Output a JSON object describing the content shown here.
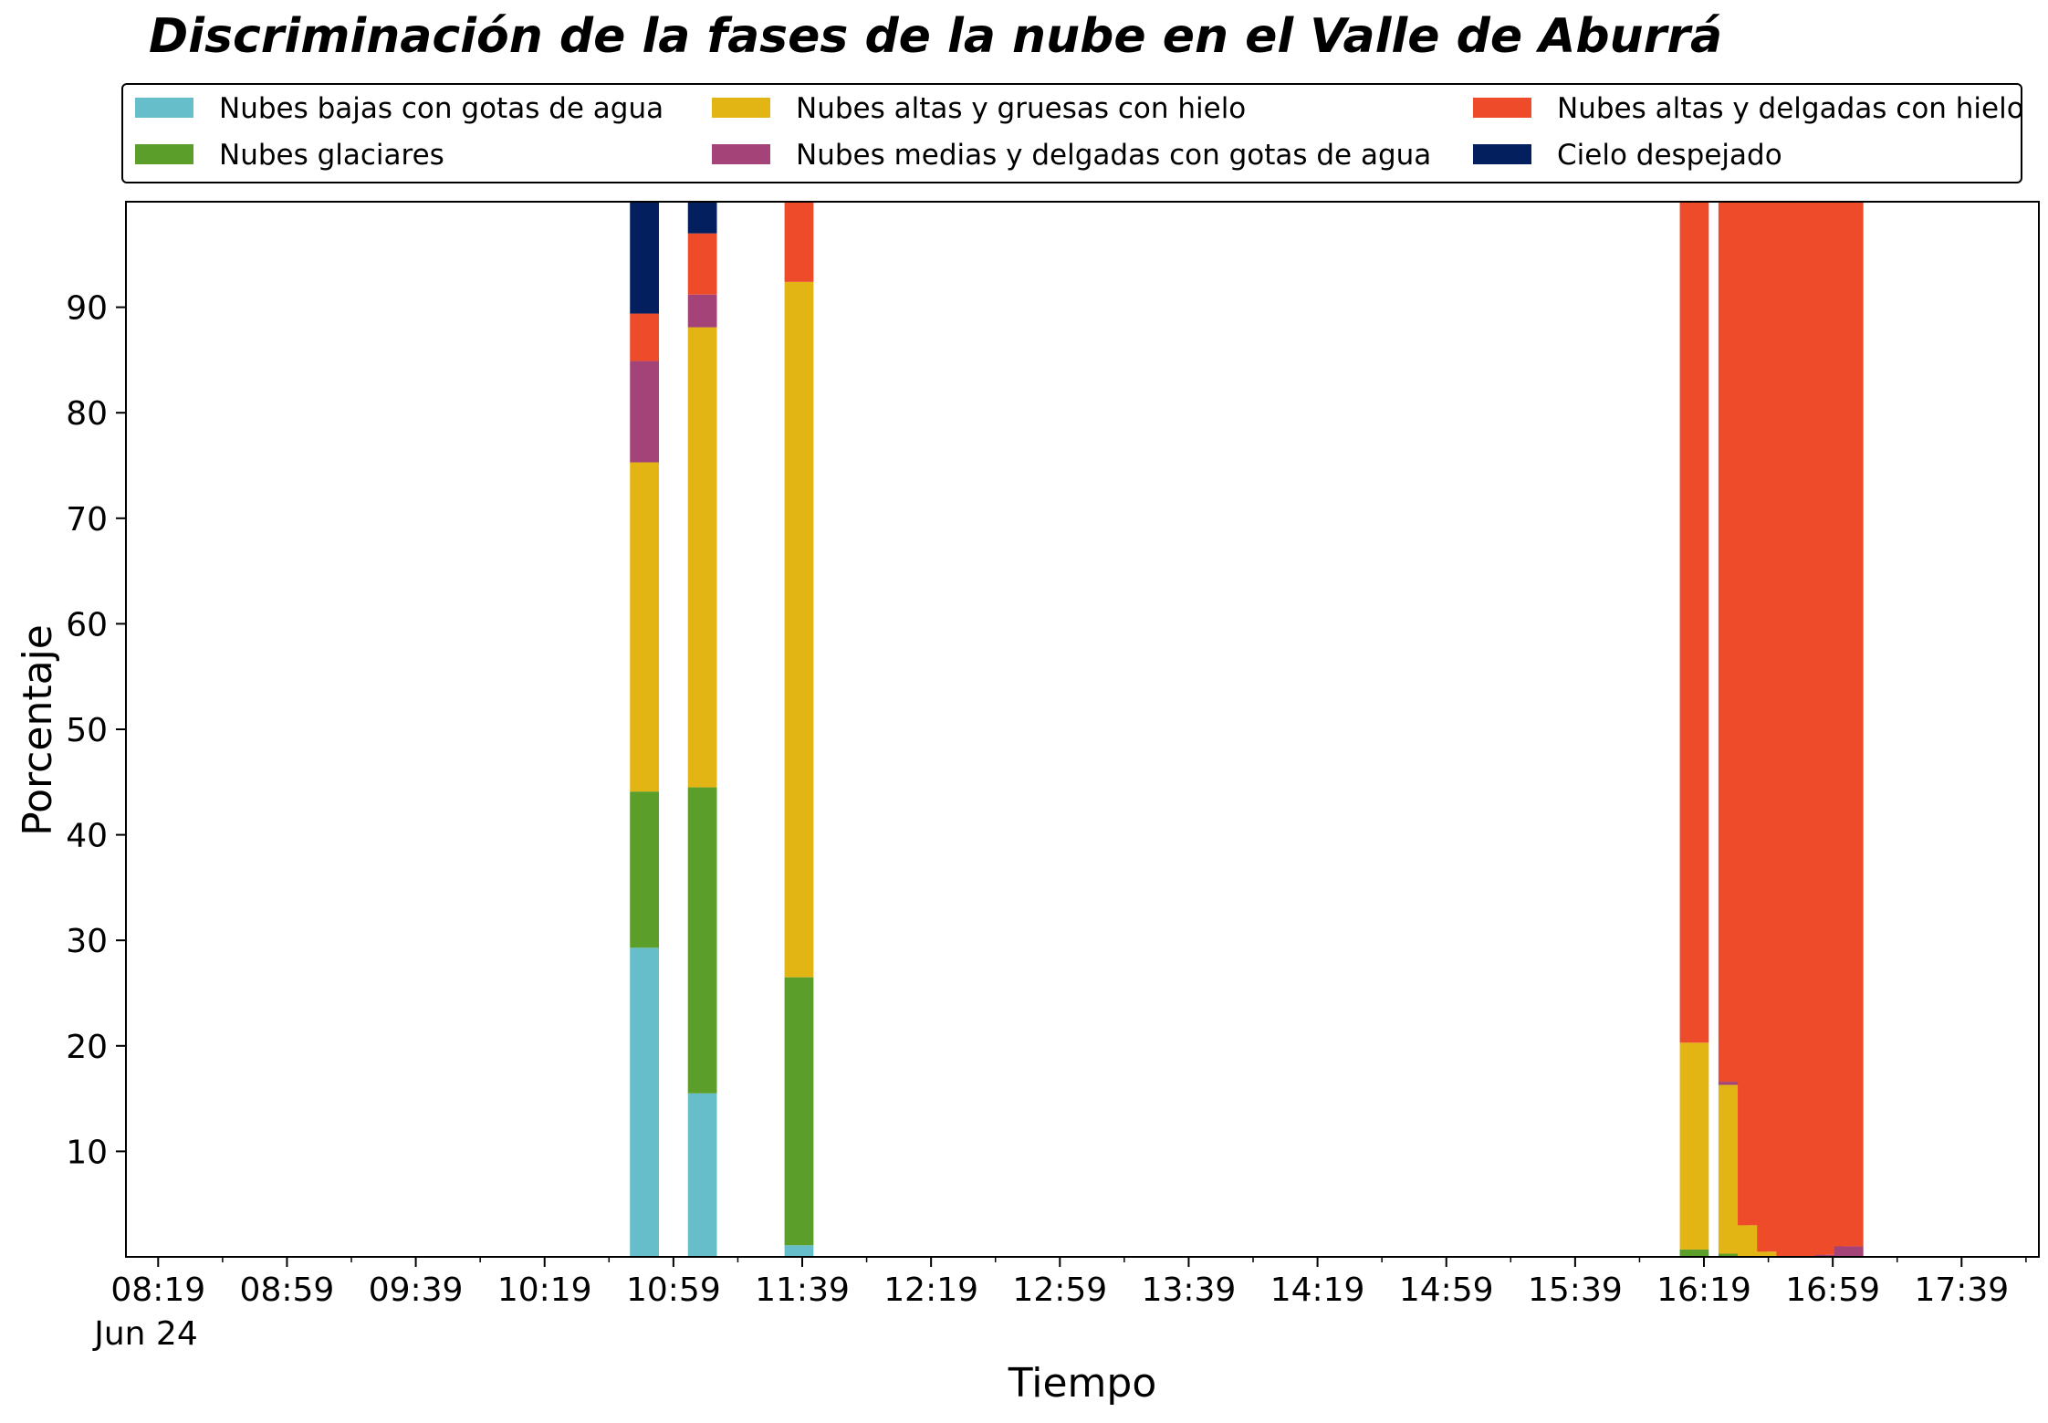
{
  "chart_data": {
    "type": "bar",
    "stacked": true,
    "title": "Discriminación de la fases de la nube en el Valle de Aburrá",
    "xlabel": "Tiempo",
    "ylabel": "Porcentaje",
    "ylim": [
      0,
      100
    ],
    "yticks": [
      10,
      20,
      30,
      40,
      50,
      60,
      70,
      80,
      90
    ],
    "xlim": [
      "08:09",
      "18:03"
    ],
    "xticks": [
      "08:19",
      "08:59",
      "09:39",
      "10:19",
      "10:59",
      "11:39",
      "12:19",
      "12:59",
      "13:39",
      "14:19",
      "14:59",
      "15:39",
      "16:19",
      "16:59",
      "17:39"
    ],
    "x_date_label": "Jun 24",
    "legend_position": "top (above plot, 3 columns)",
    "grid": false,
    "bar_width_minutes": 9,
    "categories": [
      "10:50",
      "11:08",
      "11:38",
      "16:16",
      "16:28",
      "16:34",
      "16:40",
      "16:46",
      "16:52",
      "16:58",
      "17:04"
    ],
    "series": [
      {
        "name": "Nubes bajas con gotas de agua",
        "color": "#67BECB",
        "values": [
          29.3,
          15.5,
          1.1,
          0,
          0,
          0,
          0,
          0,
          0,
          0,
          0
        ]
      },
      {
        "name": "Nubes glaciares",
        "color": "#5B9E29",
        "values": [
          14.8,
          29.0,
          25.4,
          0.7,
          0.3,
          0,
          0,
          0,
          0,
          0,
          0
        ]
      },
      {
        "name": "Nubes altas y gruesas con hielo",
        "color": "#E3B514",
        "values": [
          31.2,
          43.6,
          65.9,
          19.6,
          16.0,
          3.0,
          0.5,
          0,
          0,
          0,
          0
        ]
      },
      {
        "name": "Nubes medias y delgadas con gotas de agua",
        "color": "#A34378",
        "values": [
          9.6,
          3.1,
          0,
          0,
          0.3,
          0,
          0,
          0,
          0,
          0.2,
          1.0
        ]
      },
      {
        "name": "Nubes altas y delgadas con hielo",
        "color": "#EE4B2B",
        "values": [
          4.5,
          5.8,
          7.6,
          79.7,
          83.4,
          97.0,
          99.5,
          100,
          100,
          99.8,
          99.0
        ]
      },
      {
        "name": "Cielo despejado",
        "color": "#031F5E",
        "values": [
          10.6,
          3.0,
          0,
          0,
          0,
          0,
          0,
          0,
          0,
          0,
          0
        ]
      }
    ]
  }
}
